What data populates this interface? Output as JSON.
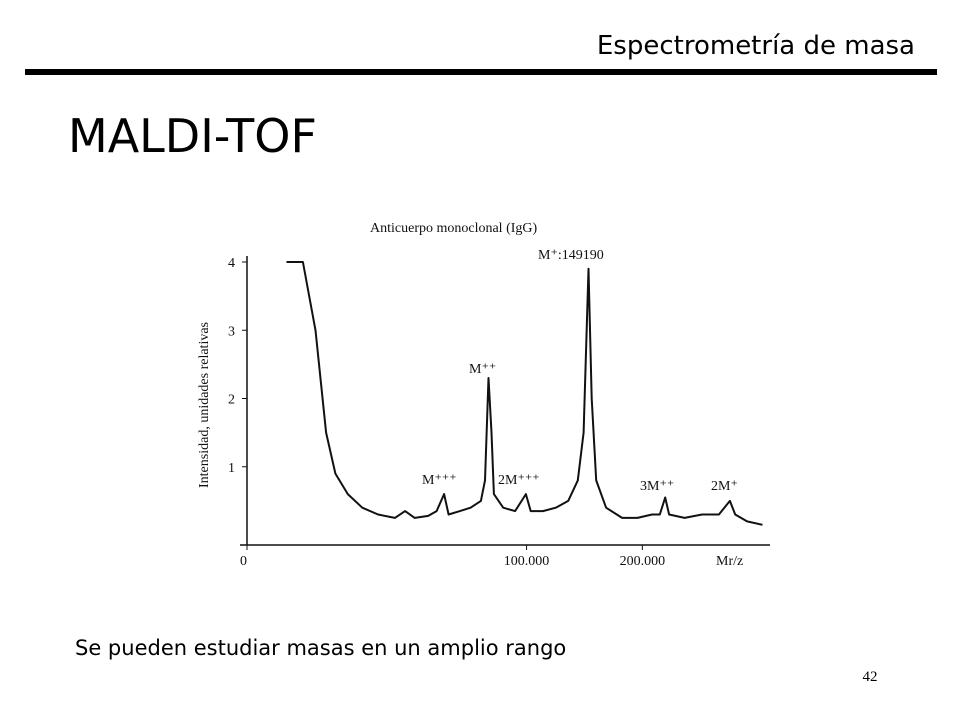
{
  "header": {
    "title": "Espectrometría de masa"
  },
  "slide_title": "MALDI-TOF",
  "caption": "Se pueden estudiar masas en un amplio rango",
  "page_number": "42",
  "chart_data": {
    "type": "line",
    "title": "Anticuerpo monoclonal (IgG)",
    "y_label": "Intensidad, unidades relativas",
    "x_label": "Mr/z",
    "annotations": [
      "M⁺:149190",
      "M⁺⁺",
      "M⁺⁺⁺",
      "2M⁺⁺⁺",
      "3M⁺⁺",
      "2M⁺"
    ],
    "x_scale": "sqrt",
    "color": "#111111",
    "xlim": [
      0,
      350000
    ],
    "ylim": [
      0,
      4
    ],
    "xticks": [
      0,
      {
        "value": 100000,
        "label": "100.000"
      },
      {
        "value": 200000,
        "label": "200.000"
      }
    ],
    "yticks": [
      1,
      2,
      3,
      4
    ],
    "x": [
      2000,
      4000,
      6000,
      8000,
      10000,
      13000,
      17000,
      22000,
      28000,
      32000,
      36000,
      42000,
      46000,
      49700,
      52000,
      58000,
      64000,
      70000,
      72500,
      74600,
      76500,
      78000,
      84000,
      92000,
      99500,
      103000,
      112000,
      122000,
      132000,
      140000,
      145000,
      149190,
      152000,
      156000,
      165000,
      180000,
      195000,
      210000,
      218000,
      223800,
      228000,
      245000,
      265000,
      285000,
      298400,
      305000,
      320000,
      340000
    ],
    "values": [
      4.0,
      4.0,
      3.0,
      1.5,
      0.9,
      0.6,
      0.4,
      0.3,
      0.25,
      0.35,
      0.25,
      0.28,
      0.35,
      0.6,
      0.3,
      0.35,
      0.4,
      0.5,
      0.8,
      2.3,
      1.5,
      0.6,
      0.4,
      0.35,
      0.6,
      0.35,
      0.35,
      0.4,
      0.5,
      0.8,
      1.5,
      3.9,
      2.0,
      0.8,
      0.4,
      0.25,
      0.25,
      0.3,
      0.3,
      0.55,
      0.3,
      0.25,
      0.3,
      0.3,
      0.5,
      0.3,
      0.2,
      0.15
    ]
  }
}
